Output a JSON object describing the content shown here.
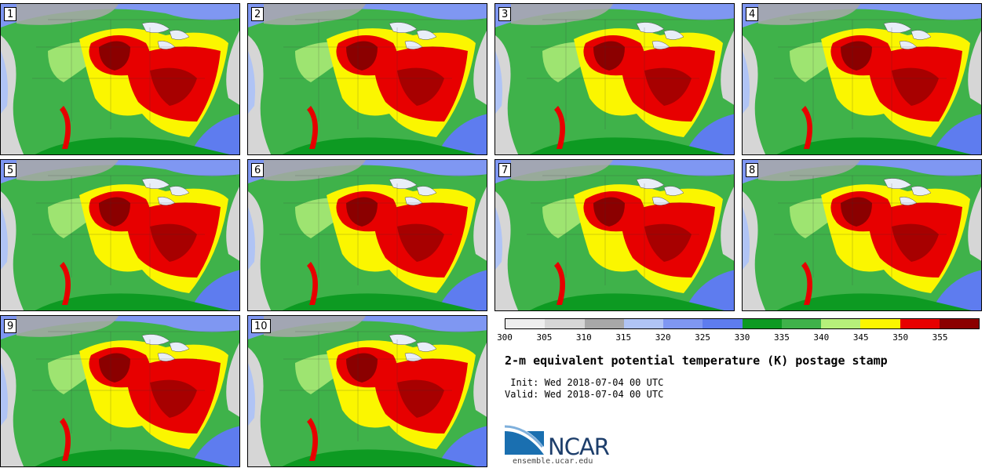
{
  "panels": [
    {
      "label": "1"
    },
    {
      "label": "2"
    },
    {
      "label": "3"
    },
    {
      "label": "4"
    },
    {
      "label": "5"
    },
    {
      "label": "6"
    },
    {
      "label": "7"
    },
    {
      "label": "8"
    },
    {
      "label": "9"
    },
    {
      "label": "10"
    }
  ],
  "legend": {
    "colors": [
      "#eeeeee",
      "#d6d6d6",
      "#a8a8a8",
      "#b0c4f5",
      "#7f97f2",
      "#5e7cef",
      "#0d9a22",
      "#3fb24a",
      "#b6f07a",
      "#fbf600",
      "#e70000",
      "#8b0000"
    ],
    "ticks": [
      "300",
      "305",
      "310",
      "315",
      "320",
      "325",
      "330",
      "335",
      "340",
      "345",
      "350",
      "355"
    ]
  },
  "title": "2-m equivalent potential temperature (K) postage stamp",
  "init_line": " Init: Wed 2018-07-04 00 UTC",
  "valid_line": "Valid: Wed 2018-07-04 00 UTC",
  "logo": {
    "text": "NCAR",
    "site": "ensemble.ucar.edu"
  }
}
